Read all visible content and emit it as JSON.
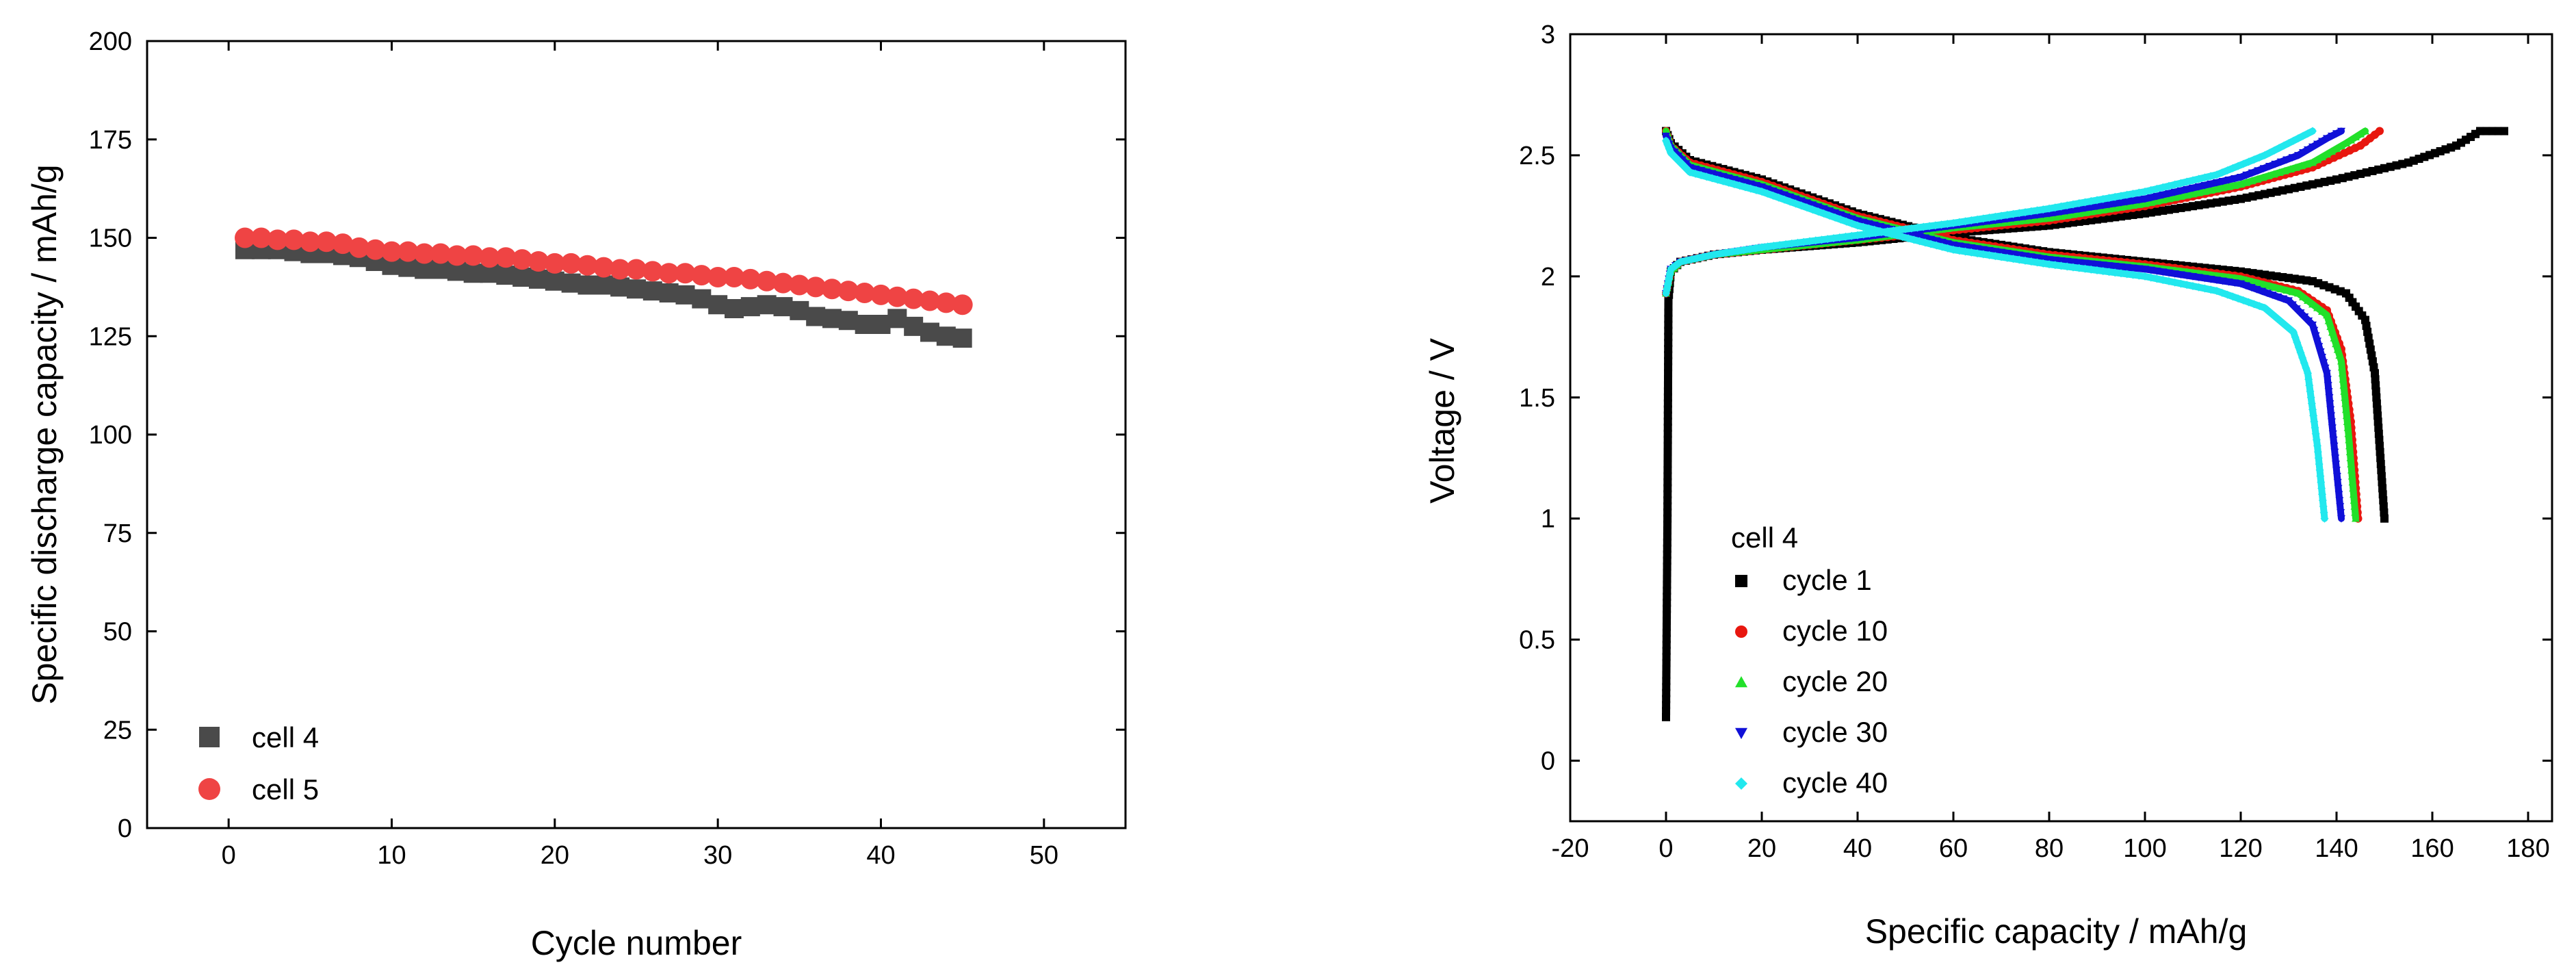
{
  "chart_data": [
    {
      "type": "scatter",
      "xlabel": "Cycle number",
      "ylabel": "Specific discharge capacity / mAh/g",
      "xlim": [
        -5,
        55
      ],
      "ylim": [
        0,
        200
      ],
      "xticks": [
        0,
        10,
        20,
        30,
        40,
        50
      ],
      "yticks": [
        0,
        25,
        50,
        75,
        100,
        125,
        150,
        175,
        200
      ],
      "legend_position": "bottom-left",
      "series": [
        {
          "name": "cell 4",
          "marker": "square",
          "color": "#4a4a4a",
          "x": [
            1,
            2,
            3,
            4,
            5,
            6,
            7,
            8,
            9,
            10,
            11,
            12,
            13,
            14,
            15,
            16,
            17,
            18,
            19,
            20,
            21,
            22,
            23,
            24,
            25,
            26,
            27,
            28,
            29,
            30,
            31,
            32,
            33,
            34,
            35,
            36,
            37,
            38,
            39,
            40,
            41,
            42,
            43,
            44,
            45
          ],
          "y": [
            147,
            147,
            147,
            146.5,
            146,
            146,
            145.5,
            145,
            144,
            143,
            142.5,
            142,
            142,
            141.5,
            141,
            141,
            140.5,
            140,
            139.5,
            139,
            138.5,
            138,
            138,
            137.5,
            137,
            136.5,
            136,
            135.5,
            134.5,
            133,
            132,
            132.5,
            133,
            132.5,
            131.5,
            130,
            129.5,
            129,
            128,
            128,
            129.5,
            127.5,
            126,
            125,
            124.5
          ]
        },
        {
          "name": "cell 5",
          "marker": "circle",
          "color": "#ef4444",
          "x": [
            1,
            2,
            3,
            4,
            5,
            6,
            7,
            8,
            9,
            10,
            11,
            12,
            13,
            14,
            15,
            16,
            17,
            18,
            19,
            20,
            21,
            22,
            23,
            24,
            25,
            26,
            27,
            28,
            29,
            30,
            31,
            32,
            33,
            34,
            35,
            36,
            37,
            38,
            39,
            40,
            41,
            42,
            43,
            44,
            45
          ],
          "y": [
            150,
            150,
            149.5,
            149.5,
            149,
            149,
            148.5,
            147.5,
            147,
            146.5,
            146.5,
            146,
            146,
            145.5,
            145.5,
            145,
            145,
            144.5,
            144,
            143.5,
            143.5,
            143,
            142.5,
            142,
            142,
            141.5,
            141,
            141,
            140.5,
            140,
            140,
            139.5,
            139,
            138.5,
            138,
            137.5,
            137,
            136.5,
            136,
            135.5,
            135,
            134.5,
            134,
            133.5,
            133
          ]
        }
      ]
    },
    {
      "type": "line",
      "xlabel": "Specific capacity / mAh/g",
      "ylabel": "Voltage / V",
      "xlim": [
        -20,
        185
      ],
      "ylim": [
        -0.25,
        3
      ],
      "xticks": [
        -20,
        0,
        20,
        40,
        60,
        80,
        100,
        120,
        140,
        160,
        180
      ],
      "yticks": [
        0,
        0.5,
        1,
        1.5,
        2,
        2.5,
        3
      ],
      "ytick_labels": [
        "0",
        "0.5",
        "1",
        "1.5",
        "2",
        "2.5",
        "3"
      ],
      "legend_title": "cell 4",
      "legend_position": "bottom-left",
      "series": [
        {
          "name": "cycle 1",
          "color": "#000000",
          "marker": "square",
          "charge": [
            [
              0,
              0.18
            ],
            [
              0.3,
              1.0
            ],
            [
              0.5,
              1.9
            ],
            [
              1,
              2.02
            ],
            [
              3,
              2.06
            ],
            [
              10,
              2.09
            ],
            [
              20,
              2.11
            ],
            [
              40,
              2.14
            ],
            [
              60,
              2.18
            ],
            [
              80,
              2.21
            ],
            [
              100,
              2.26
            ],
            [
              120,
              2.32
            ],
            [
              140,
              2.4
            ],
            [
              155,
              2.47
            ],
            [
              165,
              2.54
            ],
            [
              170,
              2.6
            ],
            [
              175,
              2.6
            ]
          ],
          "discharge": [
            [
              0,
              2.6
            ],
            [
              1,
              2.55
            ],
            [
              5,
              2.48
            ],
            [
              20,
              2.4
            ],
            [
              40,
              2.26
            ],
            [
              60,
              2.16
            ],
            [
              80,
              2.1
            ],
            [
              100,
              2.06
            ],
            [
              120,
              2.02
            ],
            [
              135,
              1.98
            ],
            [
              142,
              1.93
            ],
            [
              146,
              1.82
            ],
            [
              148,
              1.6
            ],
            [
              149,
              1.3
            ],
            [
              150,
              1.0
            ]
          ]
        },
        {
          "name": "cycle 10",
          "color": "#e8170f",
          "marker": "circle",
          "charge": [
            [
              0,
              1.93
            ],
            [
              1,
              2.02
            ],
            [
              3,
              2.06
            ],
            [
              10,
              2.09
            ],
            [
              20,
              2.11
            ],
            [
              40,
              2.15
            ],
            [
              60,
              2.19
            ],
            [
              80,
              2.23
            ],
            [
              100,
              2.29
            ],
            [
              120,
              2.37
            ],
            [
              135,
              2.45
            ],
            [
              145,
              2.54
            ],
            [
              149,
              2.6
            ]
          ],
          "discharge": [
            [
              0,
              2.6
            ],
            [
              1,
              2.54
            ],
            [
              5,
              2.47
            ],
            [
              20,
              2.39
            ],
            [
              40,
              2.25
            ],
            [
              60,
              2.15
            ],
            [
              80,
              2.09
            ],
            [
              100,
              2.05
            ],
            [
              120,
              2.0
            ],
            [
              132,
              1.94
            ],
            [
              138,
              1.86
            ],
            [
              141,
              1.7
            ],
            [
              143,
              1.4
            ],
            [
              144.5,
              1.0
            ]
          ]
        },
        {
          "name": "cycle 20",
          "color": "#22e02a",
          "marker": "triangle-up",
          "charge": [
            [
              0,
              1.93
            ],
            [
              1,
              2.02
            ],
            [
              3,
              2.06
            ],
            [
              10,
              2.09
            ],
            [
              20,
              2.11
            ],
            [
              40,
              2.15
            ],
            [
              60,
              2.2
            ],
            [
              80,
              2.24
            ],
            [
              100,
              2.3
            ],
            [
              120,
              2.38
            ],
            [
              135,
              2.47
            ],
            [
              142,
              2.55
            ],
            [
              146,
              2.6
            ]
          ],
          "discharge": [
            [
              0,
              2.6
            ],
            [
              1,
              2.54
            ],
            [
              5,
              2.46
            ],
            [
              20,
              2.38
            ],
            [
              40,
              2.24
            ],
            [
              60,
              2.14
            ],
            [
              80,
              2.08
            ],
            [
              100,
              2.04
            ],
            [
              120,
              1.99
            ],
            [
              132,
              1.93
            ],
            [
              138,
              1.84
            ],
            [
              141,
              1.65
            ],
            [
              142.5,
              1.35
            ],
            [
              144,
              1.0
            ]
          ]
        },
        {
          "name": "cycle 30",
          "color": "#1010d8",
          "marker": "triangle-down",
          "charge": [
            [
              0,
              1.93
            ],
            [
              1,
              2.03
            ],
            [
              3,
              2.06
            ],
            [
              10,
              2.09
            ],
            [
              20,
              2.12
            ],
            [
              40,
              2.16
            ],
            [
              60,
              2.21
            ],
            [
              80,
              2.26
            ],
            [
              100,
              2.32
            ],
            [
              120,
              2.41
            ],
            [
              132,
              2.5
            ],
            [
              138,
              2.57
            ],
            [
              141,
              2.6
            ]
          ],
          "discharge": [
            [
              0,
              2.58
            ],
            [
              1,
              2.53
            ],
            [
              5,
              2.45
            ],
            [
              20,
              2.37
            ],
            [
              40,
              2.23
            ],
            [
              60,
              2.13
            ],
            [
              80,
              2.07
            ],
            [
              100,
              2.03
            ],
            [
              120,
              1.97
            ],
            [
              130,
              1.9
            ],
            [
              135,
              1.8
            ],
            [
              138,
              1.6
            ],
            [
              139.5,
              1.3
            ],
            [
              141,
              1.0
            ]
          ]
        },
        {
          "name": "cycle 40",
          "color": "#22e8ee",
          "marker": "diamond",
          "charge": [
            [
              0,
              1.93
            ],
            [
              1,
              2.03
            ],
            [
              3,
              2.06
            ],
            [
              10,
              2.09
            ],
            [
              20,
              2.12
            ],
            [
              40,
              2.17
            ],
            [
              60,
              2.22
            ],
            [
              80,
              2.28
            ],
            [
              100,
              2.35
            ],
            [
              115,
              2.42
            ],
            [
              125,
              2.5
            ],
            [
              132,
              2.57
            ],
            [
              135,
              2.6
            ]
          ],
          "discharge": [
            [
              0,
              2.56
            ],
            [
              1,
              2.51
            ],
            [
              5,
              2.43
            ],
            [
              20,
              2.35
            ],
            [
              40,
              2.21
            ],
            [
              60,
              2.11
            ],
            [
              80,
              2.05
            ],
            [
              100,
              2.0
            ],
            [
              115,
              1.94
            ],
            [
              125,
              1.87
            ],
            [
              131,
              1.77
            ],
            [
              134,
              1.6
            ],
            [
              136,
              1.3
            ],
            [
              137.5,
              1.0
            ]
          ]
        }
      ]
    }
  ]
}
